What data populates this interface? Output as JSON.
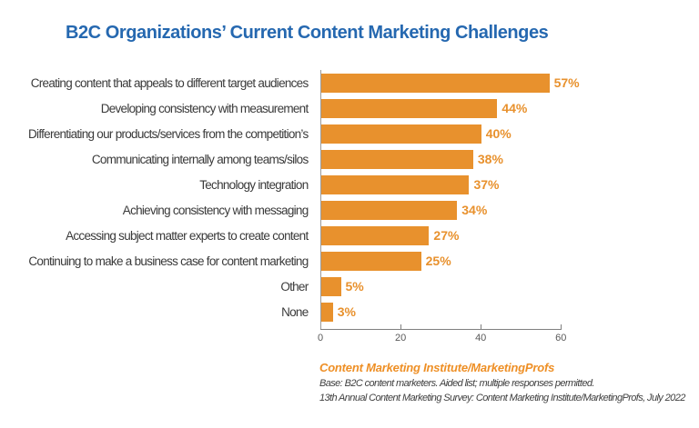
{
  "title": "B2C Organizations’ Current Content Marketing Challenges",
  "chart_data": {
    "type": "bar",
    "orientation": "horizontal",
    "title": "B2C Organizations’ Current Content Marketing Challenges",
    "categories": [
      "Creating content that appeals to different target audiences",
      "Developing consistency with measurement",
      "Differentiating our products/services from the competition’s",
      "Communicating internally among teams/silos",
      "Technology integration",
      "Achieving consistency with messaging",
      "Accessing subject matter experts to create content",
      "Continuing to make a business case for content marketing",
      "Other",
      "None"
    ],
    "values": [
      57,
      44,
      40,
      38,
      37,
      34,
      27,
      25,
      5,
      3
    ],
    "value_labels": [
      "57%",
      "44%",
      "40%",
      "38%",
      "37%",
      "34%",
      "27%",
      "25%",
      "5%",
      "3%"
    ],
    "xlim": [
      0,
      60
    ],
    "x_ticks": [
      0,
      20,
      40,
      60
    ],
    "x_tick_labels": [
      "0",
      "20",
      "40",
      "60"
    ],
    "xlabel": "",
    "ylabel": "",
    "grid": false,
    "legend": false,
    "bar_color": "#E8912D"
  },
  "footer": {
    "source": "Content Marketing Institute/MarketingProfs",
    "note1": "Base: B2C content marketers. Aided list; multiple responses permitted.",
    "note2": "13th Annual Content Marketing Survey: Content Marketing Institute/MarketingProfs, July 2022"
  },
  "colors": {
    "title": "#2568B0",
    "bar": "#E8912D",
    "value_label": "#E8912D",
    "category_label": "#3A3A3A",
    "axis": "#7F7F7F",
    "tick_label": "#595959",
    "footer_source": "#EE8F25",
    "footer_note": "#404040",
    "background": "#FFFFFF"
  }
}
